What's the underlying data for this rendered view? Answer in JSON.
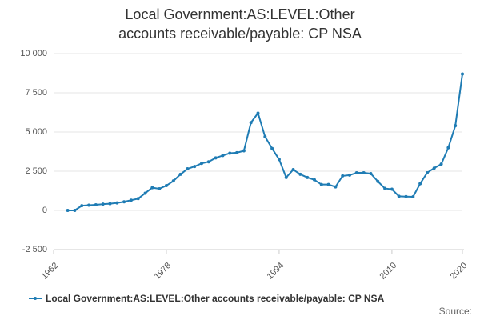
{
  "chart_data": {
    "type": "line",
    "title": "Local Government:AS:LEVEL:Other accounts receivable/payable: CP NSA",
    "x": [
      1964,
      1965,
      1966,
      1967,
      1968,
      1969,
      1970,
      1971,
      1972,
      1973,
      1974,
      1975,
      1976,
      1977,
      1978,
      1979,
      1980,
      1981,
      1982,
      1983,
      1984,
      1985,
      1986,
      1987,
      1988,
      1989,
      1990,
      1991,
      1992,
      1993,
      1994,
      1995,
      1996,
      1997,
      1998,
      1999,
      2000,
      2001,
      2002,
      2003,
      2004,
      2005,
      2006,
      2007,
      2008,
      2009,
      2010,
      2011,
      2012,
      2013,
      2014,
      2015,
      2016,
      2017,
      2018,
      2019,
      2020
    ],
    "series": [
      {
        "name": "Local Government:AS:LEVEL:Other accounts receivable/payable: CP NSA",
        "color": "#1f7cb4",
        "values": [
          0,
          0,
          300,
          330,
          360,
          400,
          430,
          480,
          550,
          650,
          750,
          1100,
          1450,
          1380,
          1580,
          1880,
          2300,
          2650,
          2800,
          3000,
          3100,
          3350,
          3500,
          3650,
          3680,
          3800,
          5600,
          6200,
          4700,
          3950,
          3250,
          2100,
          2600,
          2300,
          2100,
          1950,
          1650,
          1650,
          1500,
          2200,
          2250,
          2400,
          2400,
          2350,
          1850,
          1400,
          1350,
          900,
          880,
          870,
          1700,
          2400,
          2700,
          2950,
          4000,
          5400,
          8700
        ]
      }
    ],
    "xlim": [
      1962,
      2020
    ],
    "xticks": [
      1962,
      1978,
      1994,
      2010,
      2020
    ],
    "ylim": [
      -2500,
      10000
    ],
    "yticks": [
      {
        "value": -2500,
        "label": "-2 500"
      },
      0,
      {
        "value": 2500,
        "label": "2 500"
      },
      {
        "value": 5000,
        "label": "5 000"
      },
      {
        "value": 7500,
        "label": "7 500"
      },
      {
        "value": 10000,
        "label": "10 000"
      }
    ],
    "grid": true,
    "legend": "bottom",
    "source": "Source:"
  }
}
